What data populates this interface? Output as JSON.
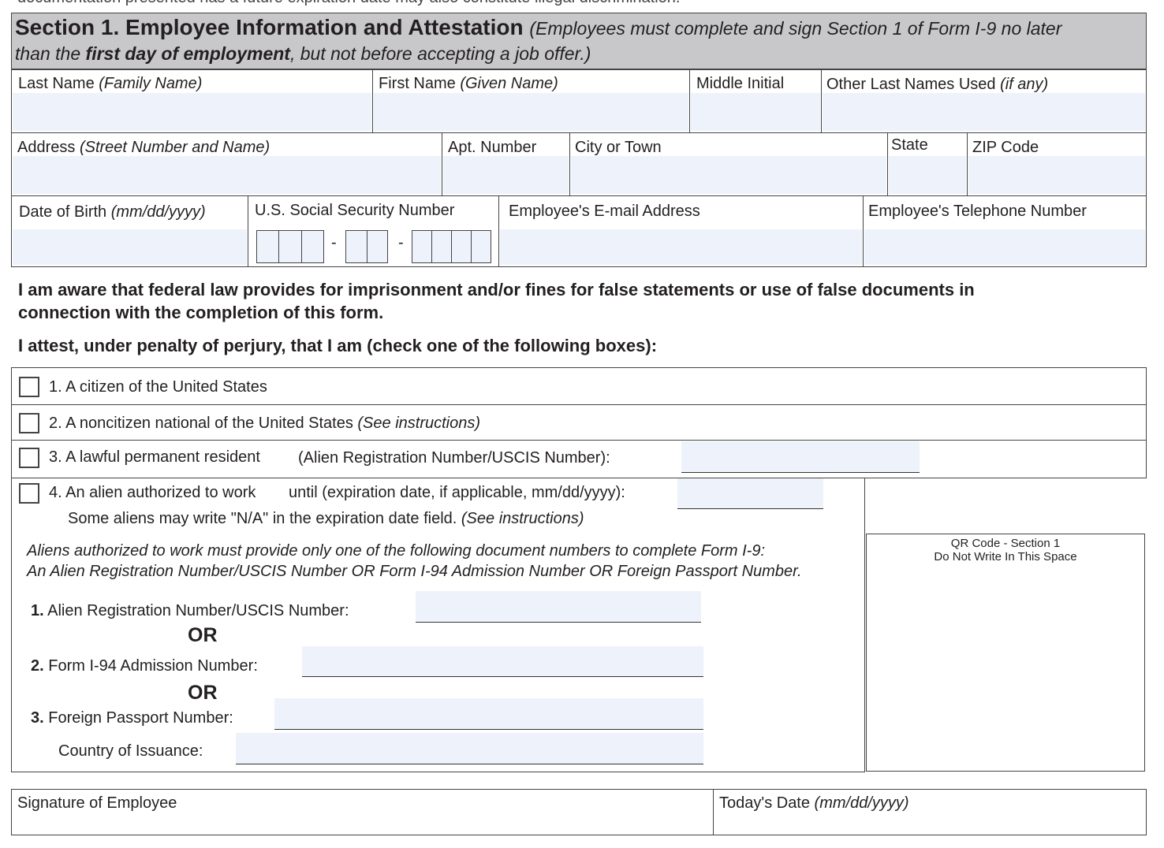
{
  "top_line": "documentation presented has a future expiration date may also constitute illegal discrimination.",
  "header": {
    "title": "Section 1. Employee Information and Attestation",
    "note_a": "(Employees must complete and sign Section 1 of Form I-9 no later",
    "note_b": "than the ",
    "note_bold": "first day of employment",
    "note_c": ", but not before accepting a job offer.)"
  },
  "fields": {
    "last_name": {
      "label": "Last Name ",
      "hint": "(Family Name)"
    },
    "first_name": {
      "label": "First Name ",
      "hint": "(Given Name)"
    },
    "middle_initial": {
      "label": "Middle Initial"
    },
    "other_names": {
      "label": "Other Last Names Used ",
      "hint": "(if any)"
    },
    "address": {
      "label": "Address ",
      "hint": "(Street Number and Name)"
    },
    "apt": {
      "label": "Apt. Number"
    },
    "city": {
      "label": "City or Town"
    },
    "state": {
      "label": "State"
    },
    "zip": {
      "label": "ZIP Code"
    },
    "dob": {
      "label": "Date of Birth ",
      "hint": "(mm/dd/yyyy)"
    },
    "ssn": {
      "label": "U.S. Social Security Number",
      "dash": "-"
    },
    "email": {
      "label": "Employee's E-mail Address"
    },
    "phone": {
      "label": "Employee's Telephone Number"
    }
  },
  "statement": {
    "line1": "I am aware that federal law provides for imprisonment and/or fines for false statements or use of false documents in",
    "line2": "connection with the completion of this form.",
    "attest": "I attest, under penalty of perjury, that I am (check one of the following boxes):"
  },
  "options": [
    {
      "label": "1. A citizen of the United States"
    },
    {
      "label": "2. A noncitizen national of the United States ",
      "hint": "(See instructions)"
    },
    {
      "label": "3. A lawful permanent resident",
      "extra": "(Alien Registration Number/USCIS Number):"
    },
    {
      "label": "4. An alien authorized to work",
      "extra": "until (expiration date, if applicable, mm/dd/yyyy):",
      "note": "Some aliens may write \"N/A\" in the expiration date field. ",
      "note_hint": "(See instructions)"
    }
  ],
  "aliens": {
    "line1": "Aliens authorized to work must provide only one of the following document numbers to complete Form I-9:",
    "line2": "An Alien Registration Number/USCIS Number OR Form I-94 Admission Number OR Foreign Passport Number.",
    "n1": "1.",
    "f1": " Alien Registration Number/USCIS Number:",
    "or": "OR",
    "n2": "2.",
    "f2": " Form I-94 Admission Number:",
    "n3": "3.",
    "f3": " Foreign Passport Number:",
    "country": "Country of Issuance:"
  },
  "qr": {
    "line1": "QR Code - Section 1",
    "line2": "Do Not Write In This Space"
  },
  "signature": {
    "label": "Signature of Employee",
    "date_label": "Today's Date ",
    "date_hint": "(mm/dd/yyyy)"
  }
}
